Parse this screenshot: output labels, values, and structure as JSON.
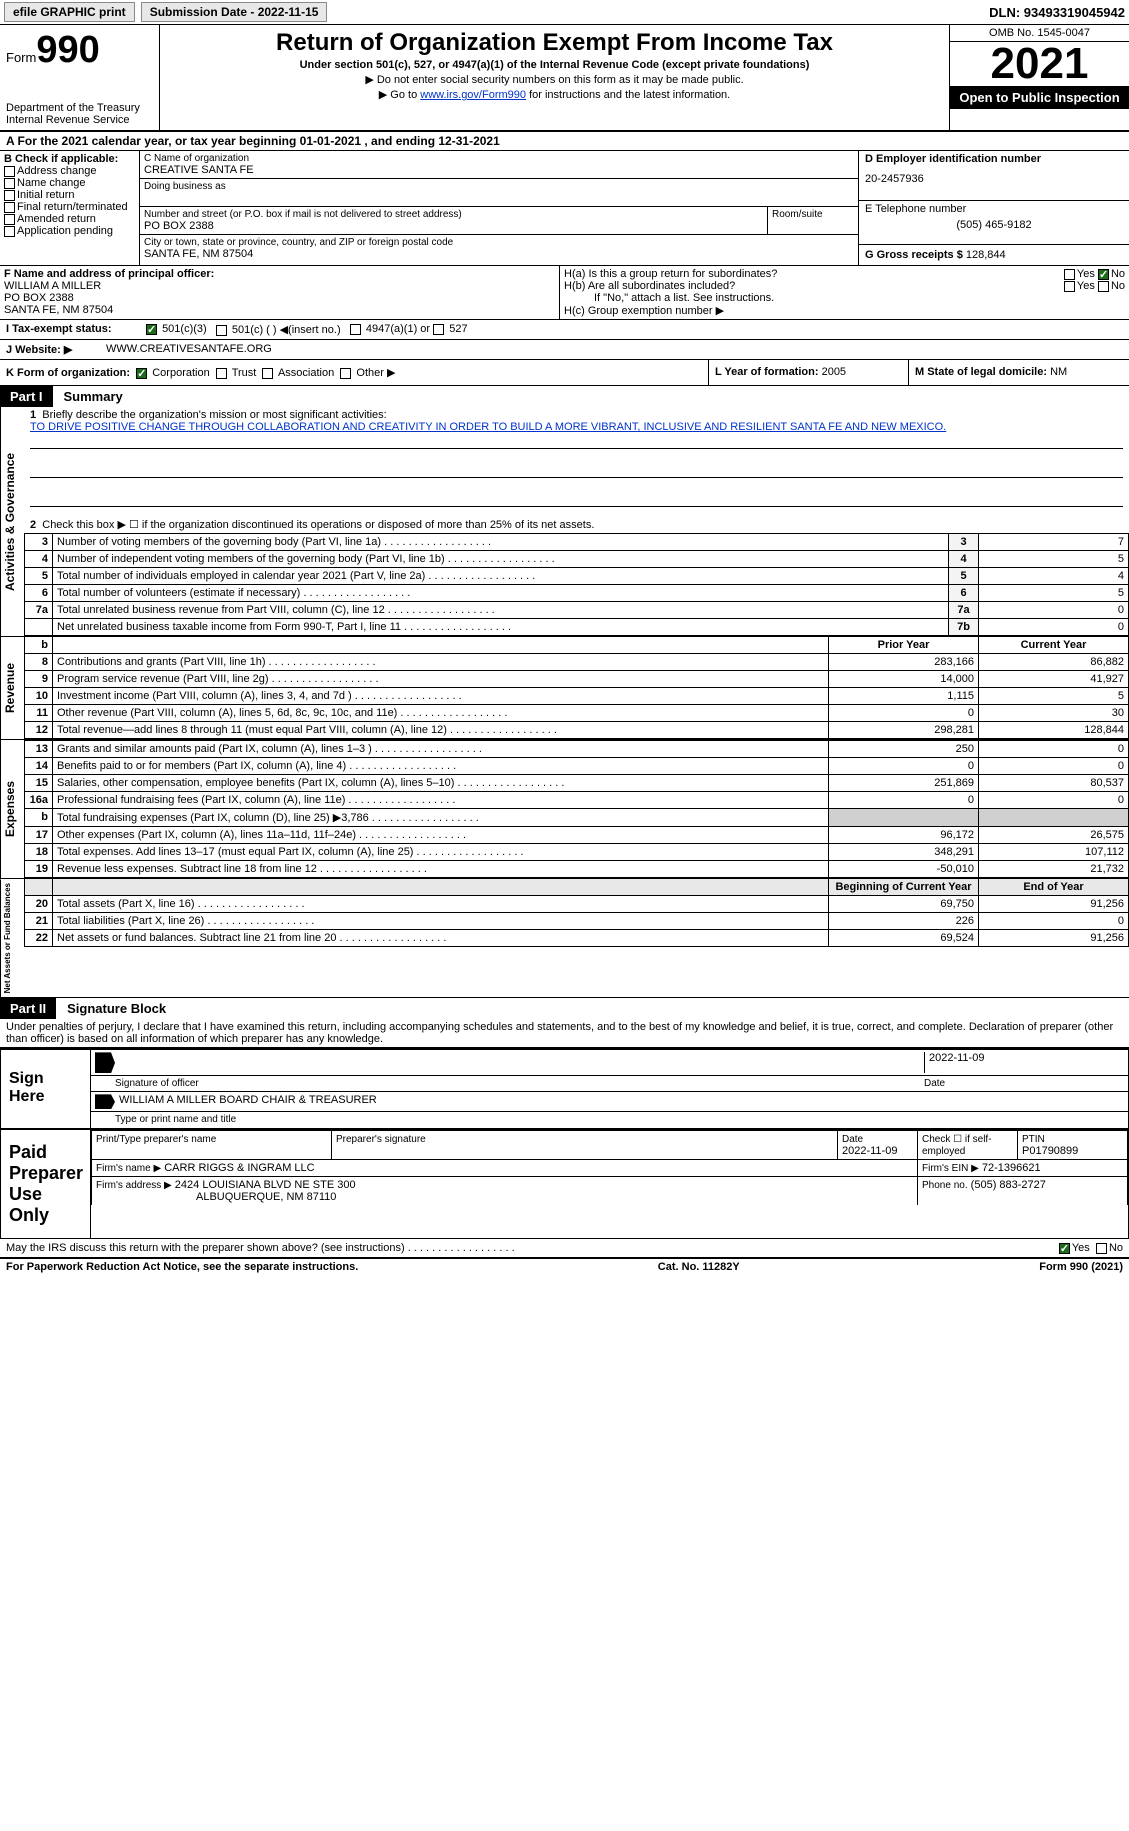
{
  "topbar": {
    "efile": "efile GRAPHIC print",
    "subdate_label": "Submission Date - 2022-11-15",
    "dln": "DLN: 93493319045942"
  },
  "header": {
    "form_prefix": "Form",
    "form_num": "990",
    "dept": "Department of the Treasury\nInternal Revenue Service",
    "title": "Return of Organization Exempt From Income Tax",
    "subtitle": "Under section 501(c), 527, or 4947(a)(1) of the Internal Revenue Code (except private foundations)",
    "note1": "▶ Do not enter social security numbers on this form as it may be made public.",
    "note2_pre": "▶ Go to ",
    "note2_link": "www.irs.gov/Form990",
    "note2_post": " for instructions and the latest information.",
    "omb": "OMB No. 1545-0047",
    "year": "2021",
    "inspect": "Open to Public Inspection"
  },
  "period": {
    "a": "A For the 2021 calendar year, or tax year beginning 01-01-2021    , and ending 12-31-2021"
  },
  "sectionB": {
    "label": "B Check if applicable:",
    "opts": [
      "Address change",
      "Name change",
      "Initial return",
      "Final return/terminated",
      "Amended return",
      "Application pending"
    ]
  },
  "sectionC": {
    "name_label": "C Name of organization",
    "name": "CREATIVE SANTA FE",
    "dba_label": "Doing business as",
    "dba": "",
    "street_label": "Number and street (or P.O. box if mail is not delivered to street address)",
    "room_label": "Room/suite",
    "street": "PO BOX 2388",
    "city_label": "City or town, state or province, country, and ZIP or foreign postal code",
    "city": "SANTA FE, NM  87504"
  },
  "sectionD": {
    "label": "D Employer identification number",
    "val": "20-2457936"
  },
  "sectionE": {
    "label": "E Telephone number",
    "val": "(505) 465-9182"
  },
  "sectionG": {
    "label": "G Gross receipts $",
    "val": "128,844"
  },
  "sectionF": {
    "label": "F Name and address of principal officer:",
    "lines": [
      "WILLIAM A MILLER",
      "PO BOX 2388",
      "SANTA FE, NM  87504"
    ]
  },
  "sectionH": {
    "a": "H(a)  Is this a group return for subordinates?",
    "a_yes": "Yes",
    "a_no": "No",
    "b": "H(b)  Are all subordinates included?",
    "b_note": "If \"No,\" attach a list. See instructions.",
    "c": "H(c)  Group exemption number ▶"
  },
  "sectionI": {
    "label": "I    Tax-exempt status:",
    "o1": "501(c)(3)",
    "o2": "501(c) (  ) ◀(insert no.)",
    "o3": "4947(a)(1) or",
    "o4": "527"
  },
  "sectionJ": {
    "label": "J   Website: ▶",
    "val": "WWW.CREATIVESANTAFE.ORG"
  },
  "sectionK": {
    "label": "K Form of organization:",
    "o1": "Corporation",
    "o2": "Trust",
    "o3": "Association",
    "o4": "Other ▶"
  },
  "sectionL": {
    "label": "L Year of formation:",
    "val": "2005"
  },
  "sectionM": {
    "label": "M State of legal domicile:",
    "val": "NM"
  },
  "part1": {
    "num": "Part I",
    "title": "Summary"
  },
  "sidebars": {
    "ag": "Activities & Governance",
    "rev": "Revenue",
    "exp": "Expenses",
    "na": "Net Assets or Fund Balances"
  },
  "summary": {
    "l1_label": "1",
    "l1_text": "Briefly describe the organization's mission or most significant activities:",
    "l1_val": "TO DRIVE POSITIVE CHANGE THROUGH COLLABORATION AND CREATIVITY IN ORDER TO BUILD A MORE VIBRANT, INCLUSIVE AND RESILIENT SANTA FE AND NEW MEXICO.",
    "l2": "Check this box ▶ ☐  if the organization discontinued its operations or disposed of more than 25% of its net assets.",
    "rows_ag": [
      {
        "n": "3",
        "t": "Number of voting members of the governing body (Part VI, line 1a)",
        "box": "3",
        "v": "7"
      },
      {
        "n": "4",
        "t": "Number of independent voting members of the governing body (Part VI, line 1b)",
        "box": "4",
        "v": "5"
      },
      {
        "n": "5",
        "t": "Total number of individuals employed in calendar year 2021 (Part V, line 2a)",
        "box": "5",
        "v": "4"
      },
      {
        "n": "6",
        "t": "Total number of volunteers (estimate if necessary)",
        "box": "6",
        "v": "5"
      },
      {
        "n": "7a",
        "t": "Total unrelated business revenue from Part VIII, column (C), line 12",
        "box": "7a",
        "v": "0"
      },
      {
        "n": "",
        "t": "Net unrelated business taxable income from Form 990-T, Part I, line 11",
        "box": "7b",
        "v": "0"
      }
    ],
    "hdr_prior": "Prior Year",
    "hdr_curr": "Current Year",
    "hdr_begin": "Beginning of Current Year",
    "hdr_end": "End of Year",
    "rows_rev": [
      {
        "n": "8",
        "t": "Contributions and grants (Part VIII, line 1h)",
        "p": "283,166",
        "c": "86,882"
      },
      {
        "n": "9",
        "t": "Program service revenue (Part VIII, line 2g)",
        "p": "14,000",
        "c": "41,927"
      },
      {
        "n": "10",
        "t": "Investment income (Part VIII, column (A), lines 3, 4, and 7d )",
        "p": "1,115",
        "c": "5"
      },
      {
        "n": "11",
        "t": "Other revenue (Part VIII, column (A), lines 5, 6d, 8c, 9c, 10c, and 11e)",
        "p": "0",
        "c": "30"
      },
      {
        "n": "12",
        "t": "Total revenue—add lines 8 through 11 (must equal Part VIII, column (A), line 12)",
        "p": "298,281",
        "c": "128,844"
      }
    ],
    "rows_exp": [
      {
        "n": "13",
        "t": "Grants and similar amounts paid (Part IX, column (A), lines 1–3 )",
        "p": "250",
        "c": "0"
      },
      {
        "n": "14",
        "t": "Benefits paid to or for members (Part IX, column (A), line 4)",
        "p": "0",
        "c": "0"
      },
      {
        "n": "15",
        "t": "Salaries, other compensation, employee benefits (Part IX, column (A), lines 5–10)",
        "p": "251,869",
        "c": "80,537"
      },
      {
        "n": "16a",
        "t": "Professional fundraising fees (Part IX, column (A), line 11e)",
        "p": "0",
        "c": "0"
      },
      {
        "n": "b",
        "t": "Total fundraising expenses (Part IX, column (D), line 25) ▶3,786",
        "p": "",
        "c": "",
        "shade": true
      },
      {
        "n": "17",
        "t": "Other expenses (Part IX, column (A), lines 11a–11d, 11f–24e)",
        "p": "96,172",
        "c": "26,575"
      },
      {
        "n": "18",
        "t": "Total expenses. Add lines 13–17 (must equal Part IX, column (A), line 25)",
        "p": "348,291",
        "c": "107,112"
      },
      {
        "n": "19",
        "t": "Revenue less expenses. Subtract line 18 from line 12",
        "p": "-50,010",
        "c": "21,732"
      }
    ],
    "rows_na": [
      {
        "n": "20",
        "t": "Total assets (Part X, line 16)",
        "p": "69,750",
        "c": "91,256"
      },
      {
        "n": "21",
        "t": "Total liabilities (Part X, line 26)",
        "p": "226",
        "c": "0"
      },
      {
        "n": "22",
        "t": "Net assets or fund balances. Subtract line 21 from line 20",
        "p": "69,524",
        "c": "91,256"
      }
    ]
  },
  "part2": {
    "num": "Part II",
    "title": "Signature Block"
  },
  "penalties": "Under penalties of perjury, I declare that I have examined this return, including accompanying schedules and statements, and to the best of my knowledge and belief, it is true, correct, and complete. Declaration of preparer (other than officer) is based on all information of which preparer has any knowledge.",
  "sign": {
    "here": "Sign Here",
    "sig_officer": "Signature of officer",
    "date_label": "Date",
    "date": "2022-11-09",
    "name": "WILLIAM A MILLER  BOARD CHAIR & TREASURER",
    "name_label": "Type or print name and title"
  },
  "paid": {
    "label": "Paid Preparer Use Only",
    "r1c1": "Print/Type preparer's name",
    "r1c2": "Preparer's signature",
    "r1c3_label": "Date",
    "r1c3": "2022-11-09",
    "r1c4": "Check ☐ if self-employed",
    "r1c5_label": "PTIN",
    "r1c5": "P01790899",
    "firm_name_label": "Firm's name    ▶",
    "firm_name": "CARR RIGGS & INGRAM LLC",
    "firm_ein_label": "Firm's EIN ▶",
    "firm_ein": "72-1396621",
    "firm_addr_label": "Firm's address ▶",
    "firm_addr1": "2424 LOUISIANA BLVD NE STE 300",
    "firm_addr2": "ALBUQUERQUE, NM  87110",
    "phone_label": "Phone no.",
    "phone": "(505) 883-2727"
  },
  "discuss": {
    "text": "May the IRS discuss this return with the preparer shown above? (see instructions)",
    "yes": "Yes",
    "no": "No"
  },
  "footer": {
    "left": "For Paperwork Reduction Act Notice, see the separate instructions.",
    "mid": "Cat. No. 11282Y",
    "right": "Form 990 (2021)"
  }
}
